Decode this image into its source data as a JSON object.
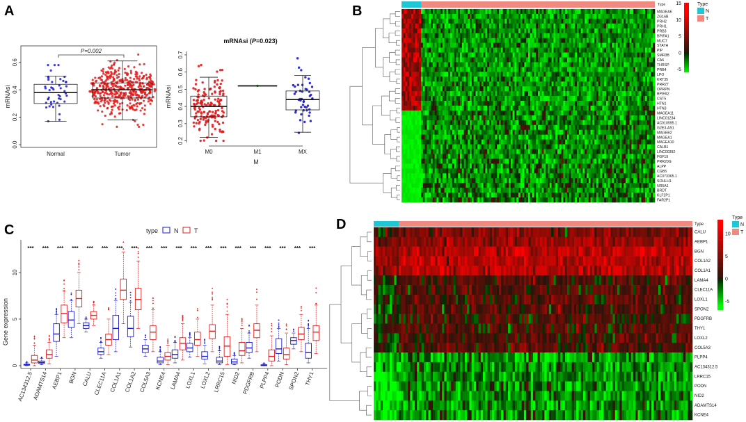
{
  "panels": {
    "A": "A",
    "B": "B",
    "C": "C",
    "D": "D"
  },
  "chart_data": [
    {
      "id": "A1",
      "type": "boxplot",
      "ylabel": "mRNAsi",
      "categories": [
        "Normal",
        "Tumor"
      ],
      "yticks": [
        "0.0",
        "0.2",
        "0.4",
        "0.6"
      ],
      "ylim": [
        -0.02,
        0.72
      ],
      "boxes": [
        {
          "q1": 0.3,
          "median": 0.38,
          "q3": 0.44,
          "low": 0.17,
          "high": 0.5,
          "n": 45,
          "color": "#1a1acc"
        },
        {
          "q1": 0.34,
          "median": 0.4,
          "q3": 0.45,
          "low": 0.18,
          "high": 0.61,
          "n": 450,
          "color": "#e01b1b"
        }
      ],
      "pvalue_label": "P=0.002"
    },
    {
      "id": "A2",
      "type": "boxplot",
      "title": "mRNAsi (P=0.023)",
      "title_main": "mRNAsi (",
      "title_p": "P",
      "title_rest": "=0.023)",
      "ylabel": "mRNAsi",
      "xlabel": "M",
      "categories": [
        "M0",
        "M1",
        "MX"
      ],
      "yticks": [
        "0.2",
        "0.3",
        "0.4",
        "0.5",
        "0.6",
        "0.7"
      ],
      "ylim": [
        0.19,
        0.72
      ],
      "boxes": [
        {
          "q1": 0.34,
          "median": 0.4,
          "q3": 0.46,
          "low": 0.22,
          "high": 0.57,
          "n": 160,
          "color": "#e01b1b"
        },
        {
          "q1": 0.52,
          "median": 0.52,
          "q3": 0.52,
          "low": 0.52,
          "high": 0.52,
          "n": 1,
          "color": "#1faa1f"
        },
        {
          "q1": 0.38,
          "median": 0.44,
          "q3": 0.49,
          "low": 0.25,
          "high": 0.58,
          "n": 45,
          "color": "#1a1acc"
        }
      ]
    },
    {
      "id": "B",
      "type": "heatmap",
      "legend_title": "Type",
      "legend_items": [
        "N",
        "T"
      ],
      "legend_colors": [
        "#1fc6d6",
        "#f08a80"
      ],
      "scale_ticks": [
        "15",
        "10",
        "5",
        "0",
        "-5"
      ],
      "scale_values": [
        15,
        10,
        5,
        0,
        -5
      ],
      "type_label": "Type",
      "rows": [
        "MAGEA6",
        "ZG16B",
        "PRH2",
        "PRH1",
        "PRB3",
        "BPIFA1",
        "MUC7",
        "STATH",
        "PIP",
        "SMR3B",
        "CA6",
        "THRSP",
        "PRB4",
        "LPO",
        "KRT35",
        "PRR27",
        "OPRPN",
        "BPIFA2",
        "CST5",
        "HTN1",
        "HTN3",
        "MAGEA11",
        "LINC01234",
        "AC010595.1",
        "G2E3-AS1",
        "MAGEB2",
        "MAGEA1",
        "MAGEA10",
        "CALB1",
        "LINC00392",
        "FGF19",
        "PRR20G",
        "ALPP",
        "CGB5",
        "AC073365.1",
        "SOHLH1",
        "NR5A1",
        "BRDT",
        "KLF2P1",
        "FAR2P1"
      ],
      "high_in_normal_rows": 21
    },
    {
      "id": "C",
      "type": "boxplot",
      "ylabel": "Gene expression",
      "legend_title": "type",
      "legend_items": [
        "N",
        "T"
      ],
      "legend_colors": [
        "#1a1acc",
        "#e01b1b"
      ],
      "yticks": [
        "0",
        "5",
        "10"
      ],
      "ylim": [
        -0.3,
        13.5
      ],
      "significance": "***",
      "categories": [
        "AC134312.5",
        "ADAMTS14",
        "AEBP1",
        "BGN",
        "CALU",
        "CLEC11A",
        "COL1A1",
        "COL1A2",
        "COL5A3",
        "KCNE4",
        "LAMA4",
        "LOXL1",
        "LOXL2",
        "LRRC15",
        "NID2",
        "PDGFRB",
        "PLPP4",
        "PODN",
        "SPON2",
        "THY1"
      ],
      "series": [
        {
          "name": "N",
          "boxes": [
            {
              "q1": 0.05,
              "median": 0.1,
              "q3": 0.15,
              "low": 0,
              "high": 0.3
            },
            {
              "q1": 0.25,
              "median": 0.35,
              "q3": 0.5,
              "low": 0.1,
              "high": 0.8
            },
            {
              "q1": 2.6,
              "median": 3.4,
              "q3": 4.5,
              "low": 1.0,
              "high": 5.5
            },
            {
              "q1": 4.1,
              "median": 4.9,
              "q3": 5.8,
              "low": 3.0,
              "high": 7.0
            },
            {
              "q1": 4.0,
              "median": 4.3,
              "q3": 4.6,
              "low": 3.6,
              "high": 5.0
            },
            {
              "q1": 1.2,
              "median": 1.5,
              "q3": 1.9,
              "low": 0.8,
              "high": 2.5
            },
            {
              "q1": 2.8,
              "median": 4.0,
              "q3": 5.4,
              "low": 1.5,
              "high": 7.0
            },
            {
              "q1": 3.1,
              "median": 4.0,
              "q3": 5.3,
              "low": 2.0,
              "high": 6.8
            },
            {
              "q1": 1.4,
              "median": 1.8,
              "q3": 2.2,
              "low": 1.0,
              "high": 2.8
            },
            {
              "q1": 0.3,
              "median": 0.5,
              "q3": 0.9,
              "low": 0.1,
              "high": 1.5
            },
            {
              "q1": 0.8,
              "median": 1.2,
              "q3": 1.7,
              "low": 0.3,
              "high": 2.5
            },
            {
              "q1": 1.5,
              "median": 1.9,
              "q3": 2.4,
              "low": 0.9,
              "high": 3.0
            },
            {
              "q1": 0.7,
              "median": 1.0,
              "q3": 1.5,
              "low": 0.2,
              "high": 2.2
            },
            {
              "q1": 0.3,
              "median": 0.5,
              "q3": 0.9,
              "low": 0.1,
              "high": 1.6
            },
            {
              "q1": 0.2,
              "median": 0.4,
              "q3": 0.7,
              "low": 0.1,
              "high": 1.1
            },
            {
              "q1": 1.4,
              "median": 1.9,
              "q3": 2.5,
              "low": 0.8,
              "high": 3.5
            },
            {
              "q1": 0.0,
              "median": 0.05,
              "q3": 0.1,
              "low": 0,
              "high": 0.2
            },
            {
              "q1": 1.3,
              "median": 1.8,
              "q3": 2.9,
              "low": 0.5,
              "high": 4.0
            },
            {
              "q1": 2.3,
              "median": 2.7,
              "q3": 3.0,
              "low": 1.8,
              "high": 3.5
            },
            {
              "q1": 0.8,
              "median": 1.4,
              "q3": 2.4,
              "low": 0.3,
              "high": 4.0
            }
          ]
        },
        {
          "name": "T",
          "boxes": [
            {
              "q1": 0.3,
              "median": 0.6,
              "q3": 1.1,
              "low": 0,
              "high": 2.2
            },
            {
              "q1": 0.8,
              "median": 1.2,
              "q3": 1.7,
              "low": 0.2,
              "high": 2.5
            },
            {
              "q1": 4.6,
              "median": 5.6,
              "q3": 6.5,
              "low": 3.0,
              "high": 8.0
            },
            {
              "q1": 6.3,
              "median": 7.2,
              "q3": 8.1,
              "low": 4.5,
              "high": 10.0
            },
            {
              "q1": 5.0,
              "median": 5.4,
              "q3": 5.8,
              "low": 4.3,
              "high": 6.5
            },
            {
              "q1": 2.2,
              "median": 2.8,
              "q3": 3.4,
              "low": 1.2,
              "high": 5.0
            },
            {
              "q1": 7.1,
              "median": 8.1,
              "q3": 9.3,
              "low": 4.5,
              "high": 12.2
            },
            {
              "q1": 6.0,
              "median": 7.1,
              "q3": 8.3,
              "low": 4.0,
              "high": 11.2
            },
            {
              "q1": 2.8,
              "median": 3.6,
              "q3": 4.3,
              "low": 1.5,
              "high": 6.0
            },
            {
              "q1": 0.6,
              "median": 1.0,
              "q3": 1.4,
              "low": 0.1,
              "high": 2.2
            },
            {
              "q1": 1.7,
              "median": 2.4,
              "q3": 3.0,
              "low": 0.6,
              "high": 4.5
            },
            {
              "q1": 2.2,
              "median": 2.8,
              "q3": 3.6,
              "low": 1.0,
              "high": 5.0
            },
            {
              "q1": 2.9,
              "median": 3.7,
              "q3": 4.4,
              "low": 1.5,
              "high": 6.5
            },
            {
              "q1": 1.0,
              "median": 2.1,
              "q3": 3.1,
              "low": 0.1,
              "high": 5.5
            },
            {
              "q1": 1.1,
              "median": 1.6,
              "q3": 2.5,
              "low": 0.3,
              "high": 4.0
            },
            {
              "q1": 3.0,
              "median": 3.8,
              "q3": 4.5,
              "low": 1.5,
              "high": 6.5
            },
            {
              "q1": 0.5,
              "median": 1.0,
              "q3": 1.7,
              "low": 0,
              "high": 3.2
            },
            {
              "q1": 0.7,
              "median": 1.2,
              "q3": 1.9,
              "low": 0.1,
              "high": 3.5
            },
            {
              "q1": 2.8,
              "median": 3.4,
              "q3": 4.1,
              "low": 1.5,
              "high": 5.5
            },
            {
              "q1": 2.7,
              "median": 3.6,
              "q3": 4.3,
              "low": 1.3,
              "high": 6.5
            }
          ]
        }
      ]
    },
    {
      "id": "D",
      "type": "heatmap",
      "legend_title": "Type",
      "legend_items": [
        "N",
        "T"
      ],
      "legend_colors": [
        "#1fc6d6",
        "#f08a80"
      ],
      "scale_ticks": [
        "10",
        "5",
        "0",
        "-5"
      ],
      "scale_values": [
        10,
        5,
        0,
        -5
      ],
      "type_label": "Type",
      "rows": [
        "CALU",
        "AEBP1",
        "BGN",
        "COL1A2",
        "COL1A1",
        "LAMA4",
        "CLEC11A",
        "LOXL1",
        "SPON2",
        "PDGFRB",
        "THY1",
        "LOXL2",
        "COL5A3",
        "PLPP4",
        "AC134312.5",
        "LRRC15",
        "PODN",
        "NID2",
        "ADAMTS14",
        "KCNE4"
      ]
    }
  ]
}
